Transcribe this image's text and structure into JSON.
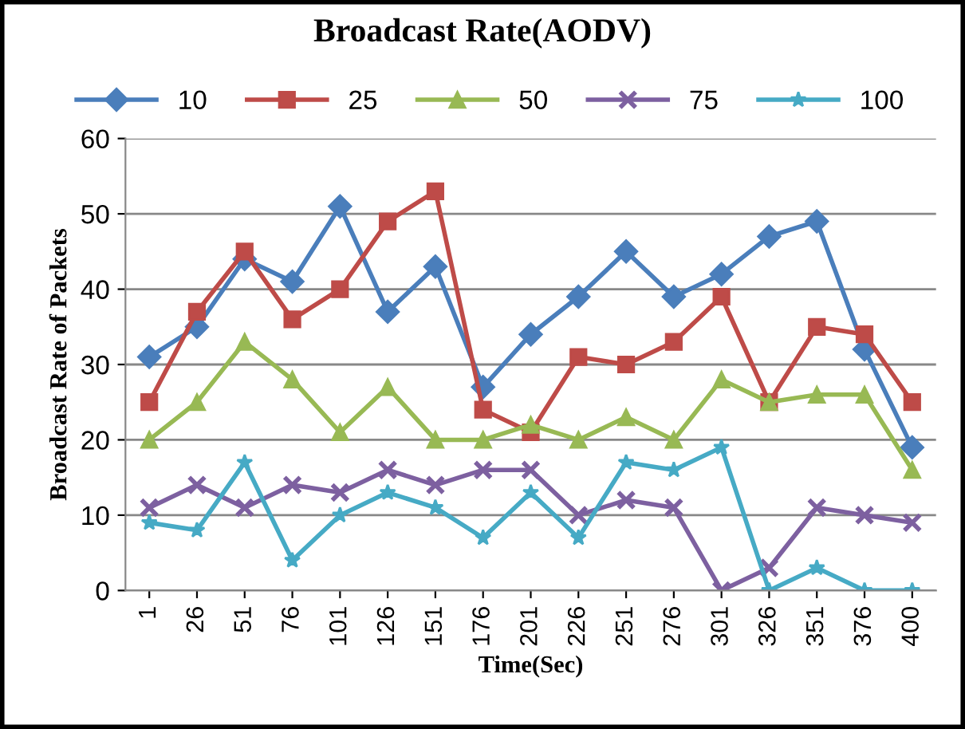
{
  "chart_data": {
    "type": "line",
    "title": "Broadcast Rate(AODV)",
    "xlabel": "Time(Sec)",
    "ylabel": "Broadcast Rate of Packets",
    "categories": [
      "1",
      "26",
      "51",
      "76",
      "101",
      "126",
      "151",
      "176",
      "201",
      "226",
      "251",
      "276",
      "301",
      "326",
      "351",
      "376",
      "400"
    ],
    "series": [
      {
        "name": "10",
        "color": "#4a7ebb",
        "marker": "diamond",
        "values": [
          31,
          35,
          44,
          41,
          51,
          37,
          43,
          27,
          34,
          39,
          45,
          39,
          42,
          47,
          49,
          32,
          19
        ]
      },
      {
        "name": "25",
        "color": "#be4b48",
        "marker": "square",
        "values": [
          25,
          37,
          45,
          36,
          40,
          49,
          53,
          24,
          21,
          31,
          30,
          33,
          39,
          25,
          35,
          34,
          25
        ]
      },
      {
        "name": "50",
        "color": "#98b954",
        "marker": "triangle",
        "values": [
          20,
          25,
          33,
          28,
          21,
          27,
          20,
          20,
          22,
          20,
          23,
          20,
          28,
          25,
          26,
          26,
          16
        ]
      },
      {
        "name": "75",
        "color": "#7d60a0",
        "marker": "cross",
        "values": [
          11,
          14,
          11,
          14,
          13,
          16,
          14,
          16,
          16,
          10,
          12,
          11,
          0,
          3,
          11,
          10,
          9
        ]
      },
      {
        "name": "100",
        "color": "#46aac5",
        "marker": "star",
        "values": [
          9,
          8,
          17,
          4,
          10,
          13,
          11,
          7,
          13,
          7,
          17,
          16,
          19,
          0,
          3,
          0,
          0
        ]
      }
    ],
    "ylim": [
      0,
      60
    ],
    "yticks": [
      0,
      10,
      20,
      30,
      40,
      50,
      60
    ],
    "grid": "y",
    "legend": "top"
  }
}
